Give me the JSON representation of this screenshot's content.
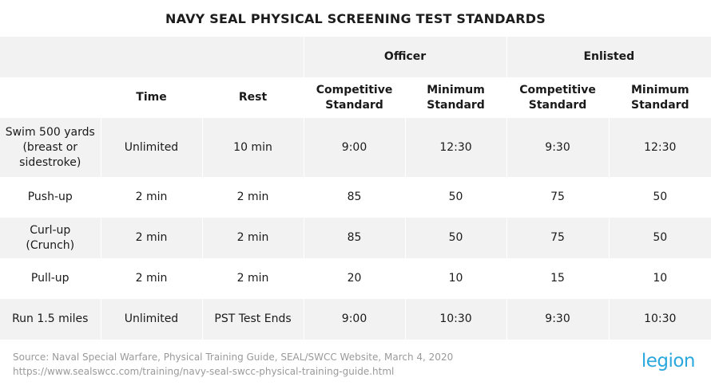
{
  "title": "NAVY SEAL PHYSICAL SCREENING TEST STANDARDS",
  "groups": {
    "officer": "Officer",
    "enlisted": "Enlisted"
  },
  "headers": {
    "time": "Time",
    "rest": "Rest",
    "officer_competitive": "Competitive Standard",
    "officer_minimum": "Minimum Standard",
    "enlisted_competitive": "Competitive Standard",
    "enlisted_minimum": "Minimum Standard"
  },
  "rows": [
    {
      "event": "Swim 500 yards (breast or sidestroke)",
      "time": "Unlimited",
      "rest": "10 min",
      "officer_competitive": "9:00",
      "officer_minimum": "12:30",
      "enlisted_competitive": "9:30",
      "enlisted_minimum": "12:30"
    },
    {
      "event": "Push-up",
      "time": "2 min",
      "rest": "2 min",
      "officer_competitive": "85",
      "officer_minimum": "50",
      "enlisted_competitive": "75",
      "enlisted_minimum": "50"
    },
    {
      "event": "Curl-up (Crunch)",
      "time": "2 min",
      "rest": "2 min",
      "officer_competitive": "85",
      "officer_minimum": "50",
      "enlisted_competitive": "75",
      "enlisted_minimum": "50"
    },
    {
      "event": "Pull-up",
      "time": "2 min",
      "rest": "2 min",
      "officer_competitive": "20",
      "officer_minimum": "10",
      "enlisted_competitive": "15",
      "enlisted_minimum": "10"
    },
    {
      "event": "Run 1.5 miles",
      "time": "Unlimited",
      "rest": "PST Test Ends",
      "officer_competitive": "9:00",
      "officer_minimum": "10:30",
      "enlisted_competitive": "9:30",
      "enlisted_minimum": "10:30"
    }
  ],
  "footer": {
    "source": "Source: Naval Special Warfare, Physical Training Guide, SEAL/SWCC Website, March 4, 2020",
    "url": "https://www.sealswcc.com/training/navy-seal-swcc-physical-training-guide.html"
  },
  "logo": "legion",
  "colors": {
    "shaded_row": "#f2f2f2",
    "logo_accent": "#2aa8dd",
    "footer_text": "#9a9a9a"
  }
}
